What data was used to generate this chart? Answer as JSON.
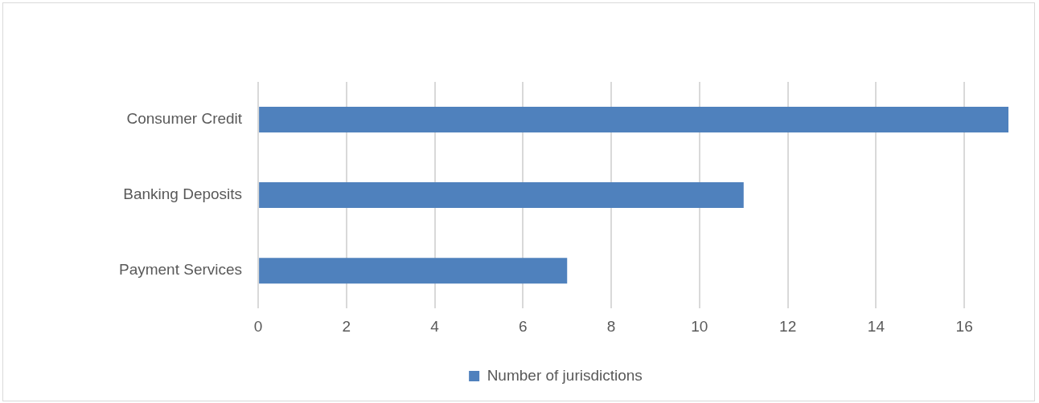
{
  "chart_data": {
    "type": "bar",
    "orientation": "horizontal",
    "categories": [
      "Consumer Credit",
      "Banking Deposits",
      "Payment Services"
    ],
    "series": [
      {
        "name": "Number of jurisdictions",
        "color": "#4f81bd",
        "values": [
          17,
          11,
          7
        ]
      }
    ],
    "xlim": [
      0,
      17
    ],
    "xticks": [
      0,
      2,
      4,
      6,
      8,
      10,
      12,
      14,
      16
    ],
    "grid": "x",
    "legend": "bottom"
  }
}
